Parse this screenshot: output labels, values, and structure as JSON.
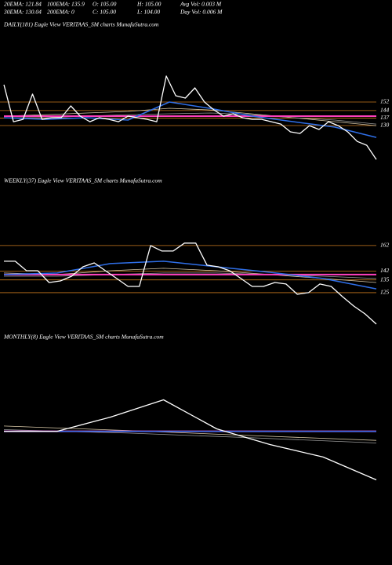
{
  "header": {
    "line1": [
      "20EMA: 121.84",
      "100EMA: 135.9",
      "O: 105.00",
      "H: 105.00",
      "Avg Vol: 0.003 M"
    ],
    "line2": [
      "30EMA: 130.04",
      "200EMA: 0",
      "C: 105.00",
      "L: 104.00",
      "Day Vol: 0.006 M"
    ]
  },
  "chart_data": [
    {
      "type": "line",
      "title": "DAILY(181) Eagle View VERITAAS_SM charts MunafaSutra.com",
      "ylim": [
        86,
        218
      ],
      "yticks": [
        152,
        144,
        137,
        130
      ],
      "grid": true,
      "grid_color": "#c8781e",
      "series": [
        {
          "color": "#d9c9a8",
          "width": 0.8,
          "values": [
            138.8,
            140.2,
            141.7,
            143.2,
            146.1,
            144.6,
            140.9,
            137.3,
            133.6,
            129.9
          ]
        },
        {
          "color": "#9a9a9a",
          "width": 0.8,
          "values": [
            137.3,
            137.3,
            138.8,
            140.2,
            141.0,
            141.7,
            140.2,
            137.3,
            135.1,
            131.4
          ]
        },
        {
          "color": "#ff3fbf",
          "width": 2,
          "values": [
            138.8,
            138.8
          ]
        },
        {
          "color": "#2f6fe8",
          "width": 1.5,
          "values": [
            137.3,
            135.8,
            137.3,
            135.1,
            152,
            145.9,
            138.8,
            133.6,
            128.5,
            118.9
          ]
        },
        {
          "color": "#ffffff",
          "width": 1.3,
          "values": [
            168.2,
            133.6,
            135.8,
            159.4,
            135.8,
            137.3,
            137.3,
            148.3,
            138.8,
            133.6,
            137.3,
            135.8,
            133.6,
            138.8,
            137.3,
            135.8,
            133.6,
            176.3,
            157.9,
            155.7,
            165.2,
            152,
            144.6,
            138.8,
            141.0,
            137.3,
            135.8,
            135.8,
            133.6,
            131.4,
            124.1,
            122.6,
            129.9,
            126.3,
            133.6,
            129.9,
            124.1,
            115.2,
            111.6,
            98.3
          ]
        }
      ]
    },
    {
      "type": "line",
      "title": "WEEKLY(37) Eagle View VERITAAS_SM charts MunafaSutra.com",
      "ylim": [
        96,
        210
      ],
      "yticks": [
        162,
        142,
        135,
        125
      ],
      "grid": true,
      "grid_color": "#c8781e",
      "series": [
        {
          "color": "#d9c9a8",
          "width": 0.8,
          "values": [
            140.4,
            139.2,
            142.2,
            144.1,
            142.2,
            139.2,
            136.1,
            133.0
          ]
        },
        {
          "color": "#9a9a9a",
          "width": 0.8,
          "values": [
            137.9,
            137.9,
            139.2,
            140.4,
            140.4,
            139.2,
            137.9,
            136.1
          ]
        },
        {
          "color": "#ff3fbf",
          "width": 2,
          "values": [
            139.2,
            139.2
          ]
        },
        {
          "color": "#2f6fe8",
          "width": 1.5,
          "values": [
            139.2,
            140.4,
            147.8,
            149.7,
            145.3,
            141.0,
            136.1,
            128.0
          ]
        },
        {
          "color": "#ffffff",
          "width": 1.3,
          "values": [
            149.7,
            149.7,
            142.2,
            142.2,
            133.0,
            134.2,
            137.9,
            145.3,
            148.4,
            142.2,
            136.1,
            129.9,
            129.9,
            162.0,
            157.7,
            157.7,
            163.9,
            163.9,
            146.6,
            145.3,
            142.2,
            136.1,
            129.9,
            129.9,
            133.0,
            131.8,
            123.7,
            125.0,
            131.8,
            129.9,
            121.9,
            114.5,
            108.3,
            100.3
          ]
        }
      ]
    },
    {
      "type": "line",
      "title": "MONTHLY(8) Eagle View VERITAAS_SM charts MunafaSutra.com",
      "ylim": [
        48,
        210
      ],
      "grid": false,
      "series": [
        {
          "color": "#d9c9a8",
          "width": 0.8,
          "values": [
            144.7,
            141.3,
            137.6,
            134.1
          ]
        },
        {
          "color": "#9a9a9a",
          "width": 0.8,
          "values": [
            142.0,
            139.5,
            136.0,
            132.2
          ]
        },
        {
          "color": "#ff3fbf",
          "width": 2,
          "values": [
            140.8,
            140.8
          ]
        },
        {
          "color": "#2f6fe8",
          "width": 1.5,
          "values": [
            140.8,
            140.8
          ]
        },
        {
          "color": "#ffffff",
          "width": 1.3,
          "values": [
            140.8,
            140.8,
            151.2,
            164.0,
            142.6,
            131.0,
            121.8,
            105
          ]
        }
      ]
    }
  ]
}
